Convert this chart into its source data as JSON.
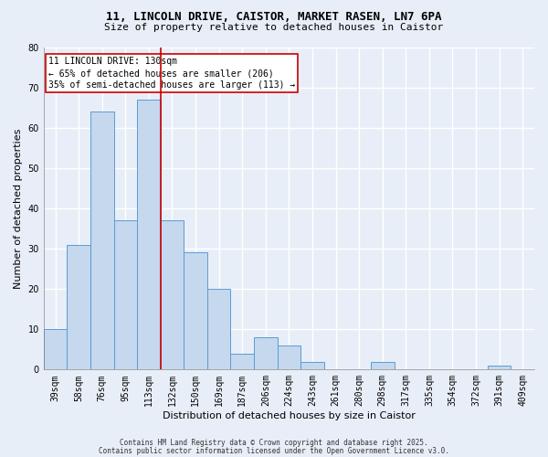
{
  "title_line1": "11, LINCOLN DRIVE, CAISTOR, MARKET RASEN, LN7 6PA",
  "title_line2": "Size of property relative to detached houses in Caistor",
  "xlabel": "Distribution of detached houses by size in Caistor",
  "ylabel": "Number of detached properties",
  "categories": [
    "39sqm",
    "58sqm",
    "76sqm",
    "95sqm",
    "113sqm",
    "132sqm",
    "150sqm",
    "169sqm",
    "187sqm",
    "206sqm",
    "224sqm",
    "243sqm",
    "261sqm",
    "280sqm",
    "298sqm",
    "317sqm",
    "335sqm",
    "354sqm",
    "372sqm",
    "391sqm",
    "409sqm"
  ],
  "bar_values": [
    10,
    31,
    64,
    37,
    67,
    37,
    29,
    20,
    4,
    8,
    6,
    2,
    0,
    0,
    2,
    0,
    0,
    0,
    0,
    1,
    0
  ],
  "bar_color": "#c5d8ed",
  "bar_edgecolor": "#5b9bd5",
  "vline_color": "#cc0000",
  "annotation_text": "11 LINCOLN DRIVE: 130sqm\n← 65% of detached houses are smaller (206)\n35% of semi-detached houses are larger (113) →",
  "annotation_box_color": "white",
  "annotation_box_edgecolor": "#cc0000",
  "ylim": [
    0,
    80
  ],
  "yticks": [
    0,
    10,
    20,
    30,
    40,
    50,
    60,
    70,
    80
  ],
  "footer_line1": "Contains HM Land Registry data © Crown copyright and database right 2025.",
  "footer_line2": "Contains public sector information licensed under the Open Government Licence v3.0.",
  "background_color": "#e8eef7",
  "grid_color": "white",
  "title_fontsize": 9,
  "subtitle_fontsize": 8,
  "xlabel_fontsize": 8,
  "ylabel_fontsize": 8,
  "tick_fontsize": 7,
  "annotation_fontsize": 7,
  "footer_fontsize": 5.5
}
